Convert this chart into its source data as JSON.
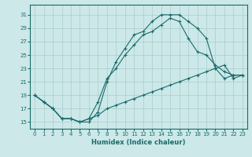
{
  "xlabel": "Humidex (Indice chaleur)",
  "xlim": [
    -0.5,
    23.5
  ],
  "ylim": [
    14,
    32.5
  ],
  "yticks": [
    15,
    17,
    19,
    21,
    23,
    25,
    27,
    29,
    31
  ],
  "xticks": [
    0,
    1,
    2,
    3,
    4,
    5,
    6,
    7,
    8,
    9,
    10,
    11,
    12,
    13,
    14,
    15,
    16,
    17,
    18,
    19,
    20,
    21,
    22,
    23
  ],
  "bg_color": "#cce8e8",
  "grid_color": "#aacccc",
  "line_color": "#1a6b6b",
  "line1_x": [
    0,
    1,
    2,
    3,
    4,
    5,
    6,
    7,
    8,
    9,
    10,
    11,
    12,
    13,
    14,
    15,
    16,
    17,
    18,
    19,
    20,
    21,
    22,
    23
  ],
  "line1_y": [
    19.0,
    18.0,
    17.0,
    15.5,
    15.5,
    15.0,
    15.0,
    16.5,
    21.0,
    24.0,
    26.0,
    28.0,
    28.5,
    30.0,
    31.0,
    31.0,
    31.0,
    30.0,
    29.0,
    27.5,
    23.0,
    21.5,
    22.0,
    22.0
  ],
  "line2_x": [
    0,
    1,
    2,
    3,
    4,
    5,
    6,
    7,
    8,
    9,
    10,
    11,
    12,
    13,
    14,
    15,
    16,
    17,
    18,
    19,
    20,
    21,
    22,
    23
  ],
  "line2_y": [
    19.0,
    18.0,
    17.0,
    15.5,
    15.5,
    15.0,
    15.5,
    18.0,
    21.5,
    23.0,
    25.0,
    26.5,
    28.0,
    28.5,
    29.5,
    30.5,
    30.0,
    27.5,
    25.5,
    25.0,
    23.5,
    22.5,
    22.0,
    22.0
  ],
  "line3_x": [
    0,
    1,
    2,
    3,
    4,
    5,
    6,
    7,
    8,
    9,
    10,
    11,
    12,
    13,
    14,
    15,
    16,
    17,
    18,
    19,
    20,
    21,
    22,
    23
  ],
  "line3_y": [
    19.0,
    18.0,
    17.0,
    15.5,
    15.5,
    15.0,
    15.5,
    16.0,
    17.0,
    17.5,
    18.0,
    18.5,
    19.0,
    19.5,
    20.0,
    20.5,
    21.0,
    21.5,
    22.0,
    22.5,
    23.0,
    23.5,
    21.5,
    22.0
  ]
}
